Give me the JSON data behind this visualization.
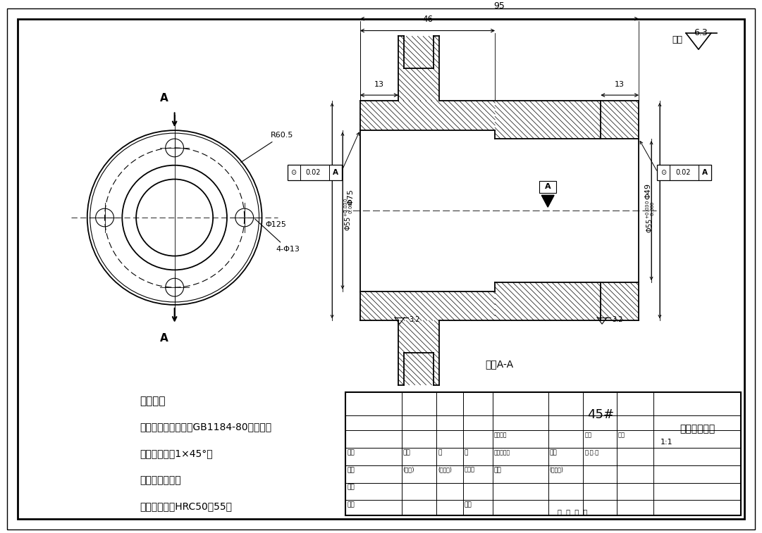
{
  "bg_color": "#ffffff",
  "line_color": "#000000",
  "drawing_title": "主动链轮轴套",
  "material": "45#",
  "scale": "1:1",
  "tech_notes": [
    "技术要求",
    "未注形状公差应符合GB1184-80的要求。",
    "未注倒角均为1×45°。",
    "去除毛刺飞边。",
    "经调质处理，HRC50～55。"
  ],
  "section_label": "剖面A-A",
  "surface_roughness": "6.3"
}
